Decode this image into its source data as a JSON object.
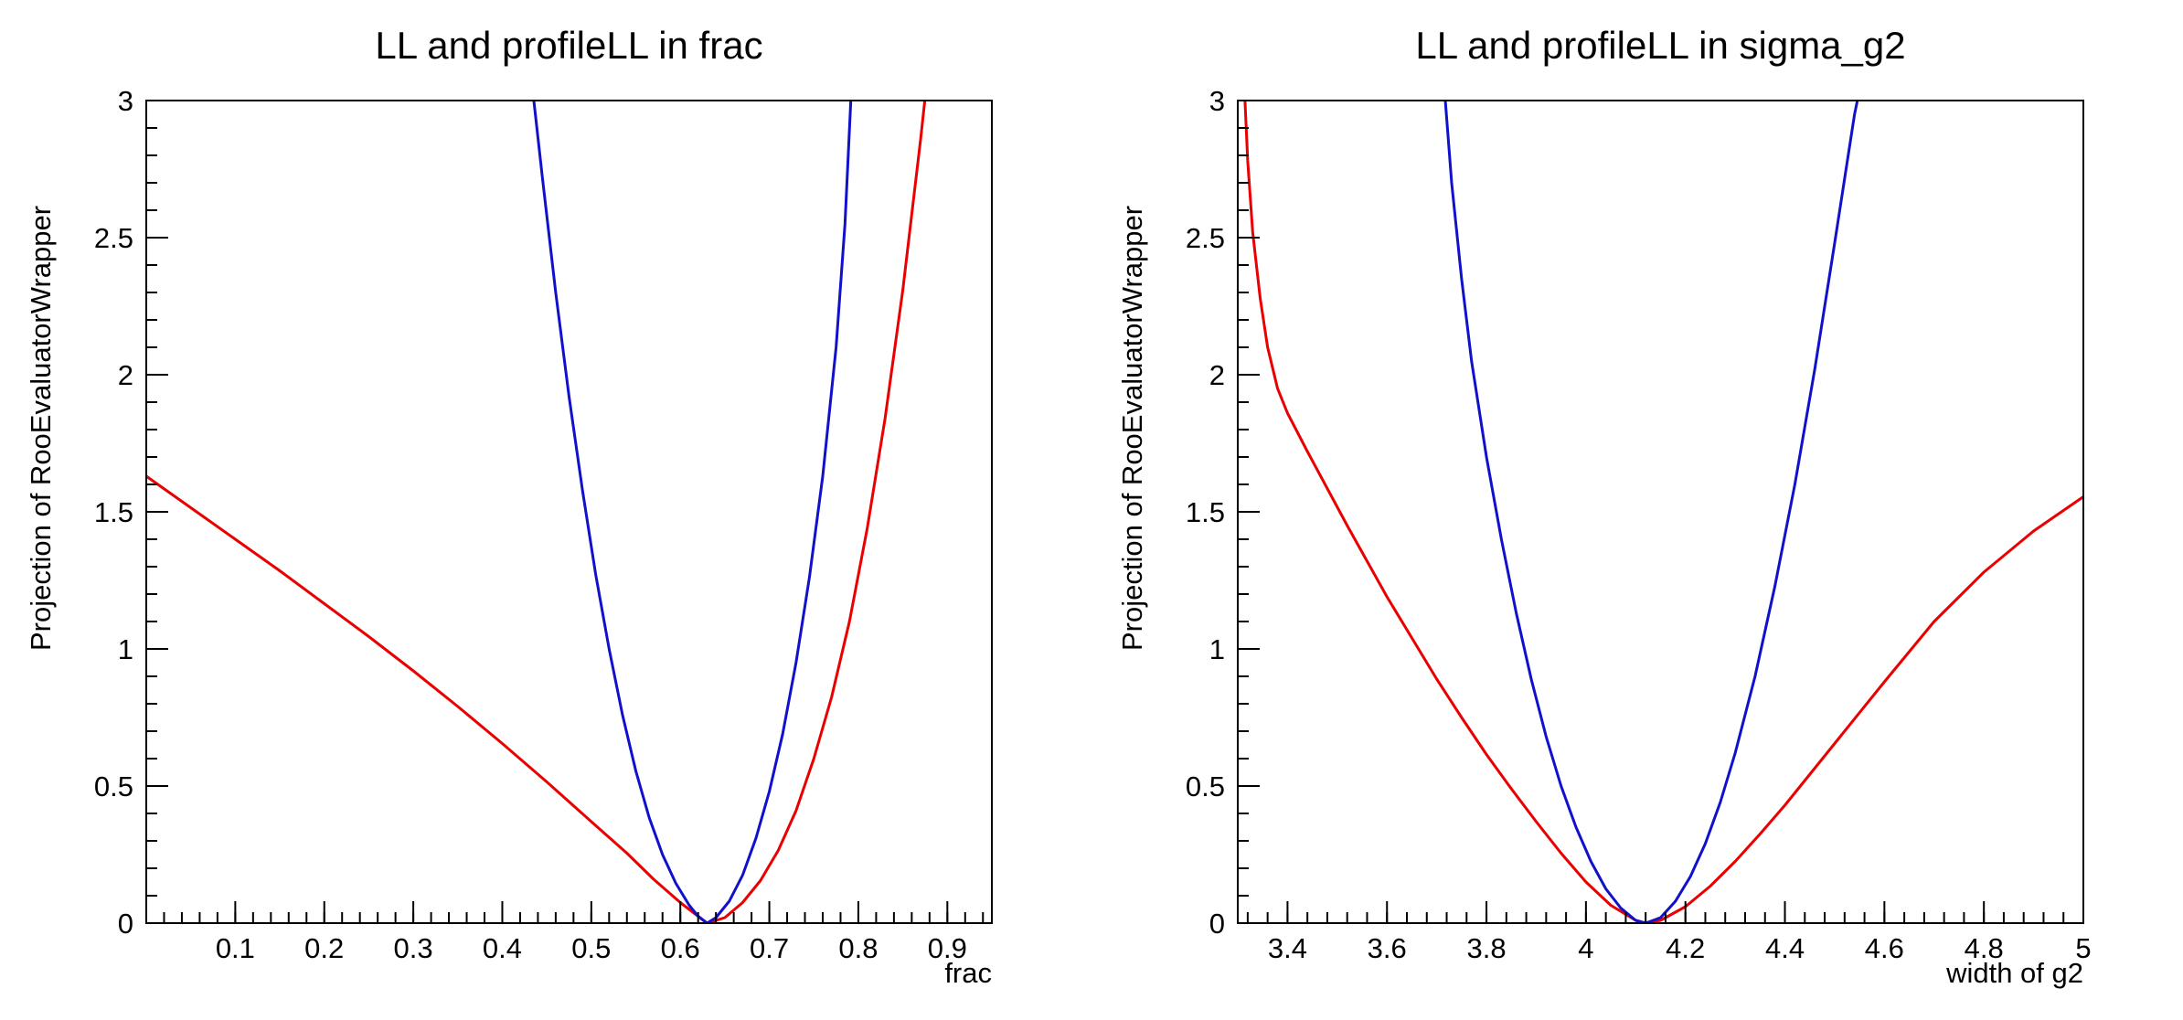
{
  "page": {
    "background": "#ffffff",
    "axis_color": "#000000"
  },
  "chart_data": [
    {
      "type": "line",
      "title": "LL and profileLL in frac",
      "xlabel": "frac",
      "ylabel": "Projection of RooEvaluatorWrapper",
      "xlim": [
        0,
        0.95
      ],
      "ylim": [
        0,
        3
      ],
      "grid": false,
      "legend": null,
      "x_major_ticks": [
        0.1,
        0.2,
        0.3,
        0.4,
        0.5,
        0.6,
        0.7,
        0.8,
        0.9
      ],
      "x_tick_labels": [
        "0.1",
        "0.2",
        "0.3",
        "0.4",
        "0.5",
        "0.6",
        "0.7",
        "0.8",
        "0.9"
      ],
      "x_minor_step": 0.02,
      "y_major_ticks": [
        0,
        0.5,
        1,
        1.5,
        2,
        2.5,
        3
      ],
      "y_tick_labels": [
        "0",
        "0.5",
        "1",
        "1.5",
        "2",
        "2.5",
        "3"
      ],
      "y_minor_step": 0.1,
      "series": [
        {
          "name": "LL",
          "color": "#ea0000",
          "points": [
            [
              0.0,
              1.63
            ],
            [
              0.05,
              1.515
            ],
            [
              0.1,
              1.4
            ],
            [
              0.15,
              1.285
            ],
            [
              0.2,
              1.165
            ],
            [
              0.25,
              1.045
            ],
            [
              0.3,
              0.92
            ],
            [
              0.35,
              0.79
            ],
            [
              0.4,
              0.655
            ],
            [
              0.45,
              0.515
            ],
            [
              0.5,
              0.37
            ],
            [
              0.54,
              0.255
            ],
            [
              0.57,
              0.16
            ],
            [
              0.6,
              0.075
            ],
            [
              0.62,
              0.025
            ],
            [
              0.63,
              0.0
            ],
            [
              0.65,
              0.02
            ],
            [
              0.67,
              0.075
            ],
            [
              0.69,
              0.155
            ],
            [
              0.71,
              0.265
            ],
            [
              0.73,
              0.41
            ],
            [
              0.75,
              0.6
            ],
            [
              0.77,
              0.825
            ],
            [
              0.79,
              1.1
            ],
            [
              0.81,
              1.44
            ],
            [
              0.83,
              1.84
            ],
            [
              0.85,
              2.31
            ],
            [
              0.87,
              2.86
            ],
            [
              0.878,
              3.1
            ]
          ]
        },
        {
          "name": "profileLL",
          "color": "#1111cc",
          "points": [
            [
              0.432,
              3.1
            ],
            [
              0.445,
              2.72
            ],
            [
              0.46,
              2.3
            ],
            [
              0.475,
              1.92
            ],
            [
              0.49,
              1.58
            ],
            [
              0.505,
              1.27
            ],
            [
              0.52,
              1.0
            ],
            [
              0.535,
              0.76
            ],
            [
              0.55,
              0.555
            ],
            [
              0.565,
              0.385
            ],
            [
              0.58,
              0.25
            ],
            [
              0.595,
              0.145
            ],
            [
              0.61,
              0.065
            ],
            [
              0.62,
              0.025
            ],
            [
              0.63,
              0.0
            ],
            [
              0.64,
              0.02
            ],
            [
              0.655,
              0.08
            ],
            [
              0.67,
              0.175
            ],
            [
              0.685,
              0.31
            ],
            [
              0.7,
              0.48
            ],
            [
              0.715,
              0.69
            ],
            [
              0.73,
              0.95
            ],
            [
              0.745,
              1.26
            ],
            [
              0.76,
              1.63
            ],
            [
              0.775,
              2.1
            ],
            [
              0.785,
              2.55
            ],
            [
              0.793,
              3.1
            ]
          ]
        }
      ]
    },
    {
      "type": "line",
      "title": "LL and profileLL in sigma_g2",
      "xlabel": "width of g2",
      "ylabel": "Projection of RooEvaluatorWrapper",
      "xlim": [
        3.3,
        5
      ],
      "ylim": [
        0,
        3
      ],
      "grid": false,
      "legend": null,
      "x_major_ticks": [
        3.4,
        3.6,
        3.8,
        4.0,
        4.2,
        4.4,
        4.6,
        4.8,
        5.0
      ],
      "x_tick_labels": [
        "3.4",
        "3.6",
        "3.8",
        "4",
        "4.2",
        "4.4",
        "4.6",
        "4.8",
        "5"
      ],
      "x_minor_step": 0.04,
      "y_major_ticks": [
        0,
        0.5,
        1,
        1.5,
        2,
        2.5,
        3
      ],
      "y_tick_labels": [
        "0",
        "0.5",
        "1",
        "1.5",
        "2",
        "2.5",
        "3"
      ],
      "y_minor_step": 0.1,
      "series": [
        {
          "name": "LL",
          "color": "#ea0000",
          "points": [
            [
              3.312,
              3.1
            ],
            [
              3.32,
              2.78
            ],
            [
              3.33,
              2.52
            ],
            [
              3.345,
              2.28
            ],
            [
              3.36,
              2.1
            ],
            [
              3.38,
              1.95
            ],
            [
              3.4,
              1.86
            ],
            [
              3.44,
              1.72
            ],
            [
              3.48,
              1.585
            ],
            [
              3.52,
              1.45
            ],
            [
              3.56,
              1.32
            ],
            [
              3.6,
              1.19
            ],
            [
              3.65,
              1.04
            ],
            [
              3.7,
              0.89
            ],
            [
              3.75,
              0.75
            ],
            [
              3.8,
              0.615
            ],
            [
              3.85,
              0.49
            ],
            [
              3.9,
              0.37
            ],
            [
              3.95,
              0.255
            ],
            [
              4.0,
              0.15
            ],
            [
              4.05,
              0.065
            ],
            [
              4.1,
              0.01
            ],
            [
              4.12,
              0.0
            ],
            [
              4.15,
              0.01
            ],
            [
              4.2,
              0.06
            ],
            [
              4.25,
              0.135
            ],
            [
              4.3,
              0.225
            ],
            [
              4.35,
              0.325
            ],
            [
              4.4,
              0.43
            ],
            [
              4.5,
              0.655
            ],
            [
              4.6,
              0.88
            ],
            [
              4.7,
              1.1
            ],
            [
              4.8,
              1.28
            ],
            [
              4.9,
              1.43
            ],
            [
              5.0,
              1.555
            ]
          ]
        },
        {
          "name": "profileLL",
          "color": "#1111cc",
          "points": [
            [
              3.713,
              3.1
            ],
            [
              3.73,
              2.7
            ],
            [
              3.75,
              2.35
            ],
            [
              3.77,
              2.05
            ],
            [
              3.8,
              1.7
            ],
            [
              3.83,
              1.4
            ],
            [
              3.86,
              1.13
            ],
            [
              3.89,
              0.89
            ],
            [
              3.92,
              0.68
            ],
            [
              3.95,
              0.5
            ],
            [
              3.98,
              0.35
            ],
            [
              4.01,
              0.225
            ],
            [
              4.04,
              0.125
            ],
            [
              4.07,
              0.055
            ],
            [
              4.1,
              0.01
            ],
            [
              4.12,
              0.0
            ],
            [
              4.15,
              0.02
            ],
            [
              4.18,
              0.08
            ],
            [
              4.21,
              0.17
            ],
            [
              4.24,
              0.29
            ],
            [
              4.27,
              0.44
            ],
            [
              4.3,
              0.62
            ],
            [
              4.34,
              0.9
            ],
            [
              4.38,
              1.23
            ],
            [
              4.42,
              1.6
            ],
            [
              4.46,
              2.02
            ],
            [
              4.5,
              2.48
            ],
            [
              4.54,
              2.95
            ],
            [
              4.557,
              3.1
            ]
          ]
        }
      ]
    }
  ]
}
